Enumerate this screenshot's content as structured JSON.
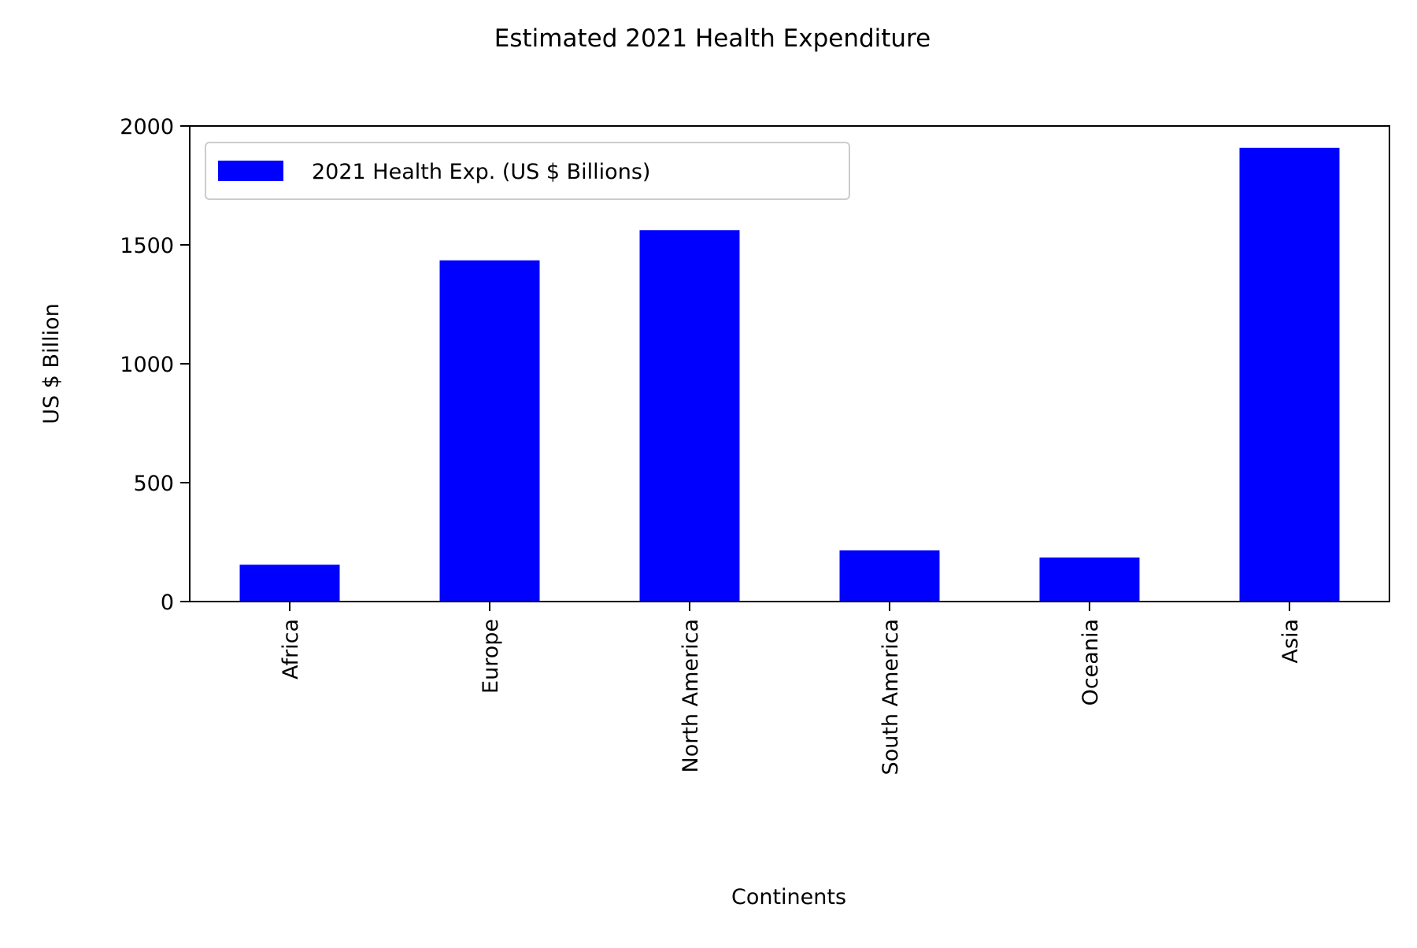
{
  "chart_data": {
    "type": "bar",
    "title": "Estimated 2021 Health Expenditure",
    "xlabel": "Continents",
    "ylabel": "US $ Billion",
    "categories": [
      "Africa",
      "Europe",
      "North America",
      "South America",
      "Oceania",
      "Asia"
    ],
    "series": [
      {
        "name": "2021 Health Exp. (US $ Billions)",
        "values": [
          155,
          1435,
          1562,
          215,
          185,
          1908
        ],
        "color": "#0000ff"
      }
    ],
    "yticks": [
      "0",
      "500",
      "1000",
      "1500",
      "2000"
    ],
    "ylim": [
      0,
      2000
    ],
    "grid": false,
    "legend_position": "top-left"
  }
}
